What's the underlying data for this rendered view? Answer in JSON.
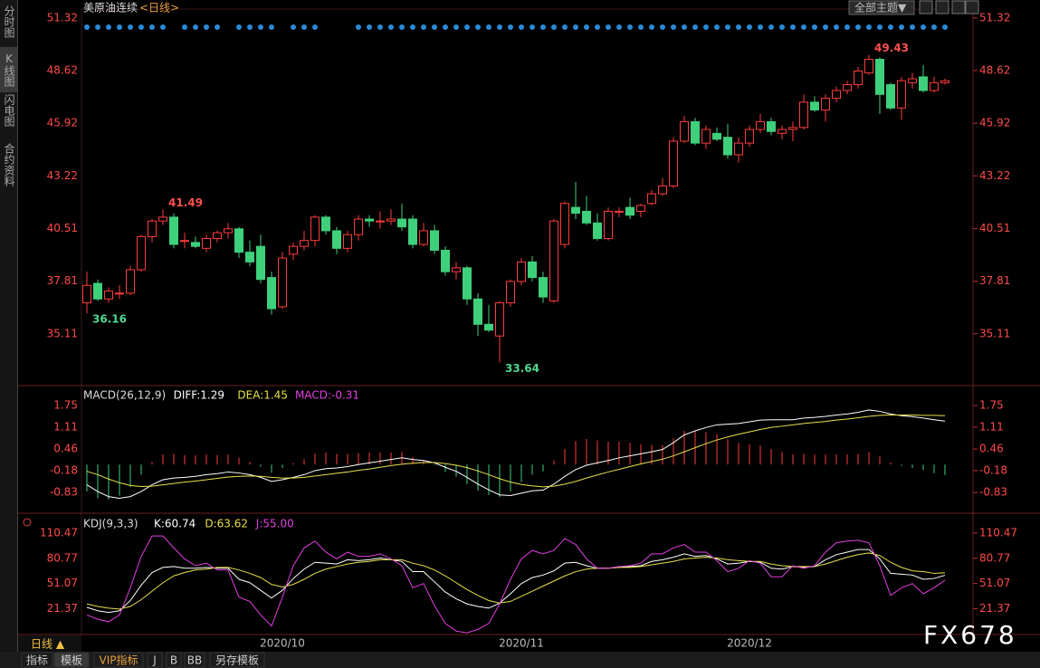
{
  "header": {
    "title": "美原油连续",
    "period": "<日线>",
    "theme_button": "全部主题▼"
  },
  "sidebar": [
    "分时图",
    "K线图",
    "闪电图",
    "合约资料"
  ],
  "chart_data": [
    {
      "type": "candlestick",
      "up_color": "#ff3c3c",
      "down_color": "#3ed07a",
      "categories": [
        null,
        null,
        null,
        null,
        null,
        null,
        null,
        null,
        null,
        null,
        null,
        null,
        null,
        null,
        null,
        null,
        null,
        null,
        "2020/10",
        null,
        null,
        null,
        null,
        null,
        null,
        null,
        null,
        null,
        null,
        null,
        null,
        null,
        null,
        null,
        null,
        null,
        null,
        null,
        null,
        null,
        "2020/11",
        null,
        null,
        null,
        null,
        null,
        null,
        null,
        null,
        null,
        null,
        null,
        null,
        null,
        null,
        null,
        null,
        null,
        null,
        null,
        null,
        "2020/12",
        null,
        null,
        null,
        null,
        null,
        null,
        null,
        null,
        null,
        null,
        null,
        null,
        null,
        null,
        null,
        null,
        null,
        null
      ],
      "candles": [
        [
          36.7,
          38.3,
          36.16,
          37.6
        ],
        [
          37.7,
          37.9,
          36.8,
          36.9
        ],
        [
          36.9,
          37.5,
          36.7,
          37.3
        ],
        [
          37.2,
          37.6,
          36.9,
          37.2
        ],
        [
          37.2,
          38.6,
          37.1,
          38.4
        ],
        [
          38.4,
          40.2,
          38.3,
          40.1
        ],
        [
          40.1,
          41.0,
          39.8,
          40.9
        ],
        [
          40.9,
          41.49,
          40.7,
          41.1
        ],
        [
          41.1,
          41.3,
          39.5,
          39.7
        ],
        [
          39.9,
          40.3,
          39.5,
          39.9
        ],
        [
          39.8,
          40.1,
          39.5,
          39.6
        ],
        [
          39.5,
          40.2,
          39.3,
          40.0
        ],
        [
          40.0,
          40.4,
          39.8,
          40.3
        ],
        [
          40.3,
          40.8,
          40.0,
          40.5
        ],
        [
          40.5,
          40.6,
          39.0,
          39.3
        ],
        [
          39.3,
          39.9,
          38.6,
          38.8
        ],
        [
          39.6,
          40.2,
          37.7,
          37.9
        ],
        [
          38.0,
          38.3,
          36.1,
          36.4
        ],
        [
          36.5,
          39.3,
          36.4,
          39.0
        ],
        [
          39.2,
          39.8,
          38.9,
          39.6
        ],
        [
          39.6,
          40.4,
          39.4,
          39.9
        ],
        [
          39.9,
          41.2,
          39.6,
          41.1
        ],
        [
          41.1,
          41.2,
          40.2,
          40.4
        ],
        [
          40.4,
          40.6,
          39.2,
          39.5
        ],
        [
          39.5,
          40.4,
          39.3,
          40.2
        ],
        [
          40.2,
          41.2,
          39.9,
          41.0
        ],
        [
          41.0,
          41.2,
          40.6,
          40.9
        ],
        [
          40.9,
          41.4,
          40.5,
          40.9
        ],
        [
          40.9,
          41.5,
          40.7,
          41.0
        ],
        [
          41.0,
          41.8,
          40.4,
          40.6
        ],
        [
          41.0,
          41.2,
          39.5,
          39.7
        ],
        [
          39.7,
          40.8,
          39.6,
          40.4
        ],
        [
          40.4,
          40.7,
          39.2,
          39.4
        ],
        [
          39.4,
          39.6,
          38.1,
          38.3
        ],
        [
          38.3,
          38.8,
          37.9,
          38.5
        ],
        [
          38.5,
          38.6,
          36.6,
          36.9
        ],
        [
          36.9,
          37.2,
          35.0,
          35.6
        ],
        [
          35.6,
          36.6,
          35.2,
          35.3
        ],
        [
          35.0,
          36.8,
          33.64,
          36.7
        ],
        [
          36.7,
          37.9,
          36.5,
          37.8
        ],
        [
          37.8,
          39.0,
          37.6,
          38.8
        ],
        [
          38.8,
          39.1,
          37.8,
          38.0
        ],
        [
          38.0,
          38.3,
          36.7,
          37.0
        ],
        [
          36.8,
          41.0,
          36.7,
          40.9
        ],
        [
          39.7,
          41.9,
          39.5,
          41.8
        ],
        [
          41.6,
          42.9,
          41.0,
          41.3
        ],
        [
          41.4,
          42.2,
          40.7,
          40.8
        ],
        [
          40.8,
          41.3,
          39.9,
          40.0
        ],
        [
          40.0,
          41.6,
          39.9,
          41.4
        ],
        [
          41.4,
          41.6,
          41.1,
          41.4
        ],
        [
          41.6,
          42.1,
          41.0,
          41.2
        ],
        [
          41.4,
          41.8,
          41.1,
          41.7
        ],
        [
          41.8,
          42.5,
          41.7,
          42.3
        ],
        [
          42.3,
          43.1,
          42.2,
          42.7
        ],
        [
          42.7,
          45.2,
          42.6,
          45.0
        ],
        [
          45.0,
          46.3,
          44.9,
          46.0
        ],
        [
          46.0,
          46.2,
          44.8,
          44.9
        ],
        [
          44.9,
          45.8,
          44.6,
          45.6
        ],
        [
          45.4,
          45.7,
          45.0,
          45.1
        ],
        [
          45.2,
          45.9,
          44.1,
          44.3
        ],
        [
          44.3,
          45.2,
          43.9,
          44.9
        ],
        [
          44.9,
          45.8,
          44.7,
          45.6
        ],
        [
          45.6,
          46.4,
          45.4,
          46.0
        ],
        [
          46.0,
          46.2,
          45.3,
          45.5
        ],
        [
          45.4,
          45.8,
          45.1,
          45.6
        ],
        [
          45.6,
          46.0,
          45.0,
          45.7
        ],
        [
          45.7,
          47.4,
          45.6,
          47.0
        ],
        [
          47.0,
          47.3,
          46.5,
          46.6
        ],
        [
          46.6,
          47.4,
          46.0,
          47.2
        ],
        [
          47.2,
          47.8,
          47.0,
          47.6
        ],
        [
          47.6,
          48.1,
          47.4,
          47.9
        ],
        [
          47.9,
          48.8,
          47.7,
          48.6
        ],
        [
          48.5,
          49.43,
          48.4,
          49.2
        ],
        [
          49.2,
          49.3,
          46.4,
          47.4
        ],
        [
          47.9,
          48.0,
          46.6,
          46.7
        ],
        [
          46.7,
          48.3,
          46.1,
          48.1
        ],
        [
          48.0,
          48.5,
          47.7,
          48.2
        ],
        [
          48.3,
          48.9,
          47.5,
          47.6
        ],
        [
          47.6,
          48.3,
          47.5,
          48.0
        ],
        [
          48.0,
          48.2,
          47.9,
          48.1
        ]
      ],
      "ylim": [
        32.5,
        51.78
      ],
      "yticks": [
        51.32,
        48.62,
        45.92,
        43.22,
        40.51,
        37.81,
        35.11
      ]
    },
    {
      "type": "macd",
      "title": "MACD(26,12,9)",
      "ylim": [
        -1.39,
        2.29
      ],
      "yticks": [
        1.75,
        1.11,
        0.46,
        -0.18,
        -0.83
      ],
      "series": [
        {
          "name": "DIFF:1.29",
          "color": "#ffffff",
          "values": [
            -0.6,
            -0.8,
            -0.95,
            -1.0,
            -0.95,
            -0.8,
            -0.6,
            -0.45,
            -0.4,
            -0.38,
            -0.35,
            -0.3,
            -0.27,
            -0.22,
            -0.25,
            -0.3,
            -0.38,
            -0.5,
            -0.45,
            -0.38,
            -0.3,
            -0.18,
            -0.12,
            -0.1,
            -0.06,
            0.0,
            0.05,
            0.1,
            0.15,
            0.2,
            0.15,
            0.12,
            0.05,
            -0.08,
            -0.2,
            -0.38,
            -0.58,
            -0.75,
            -0.9,
            -0.92,
            -0.85,
            -0.78,
            -0.76,
            -0.58,
            -0.35,
            -0.15,
            -0.02,
            0.05,
            0.12,
            0.2,
            0.26,
            0.32,
            0.38,
            0.45,
            0.65,
            0.88,
            1.0,
            1.1,
            1.18,
            1.2,
            1.22,
            1.27,
            1.32,
            1.33,
            1.33,
            1.33,
            1.38,
            1.4,
            1.43,
            1.47,
            1.5,
            1.55,
            1.62,
            1.58,
            1.5,
            1.45,
            1.42,
            1.38,
            1.33,
            1.29
          ]
        },
        {
          "name": "DEA:1.45",
          "color": "#e8e04a",
          "values": [
            -0.2,
            -0.3,
            -0.43,
            -0.54,
            -0.62,
            -0.65,
            -0.64,
            -0.6,
            -0.56,
            -0.52,
            -0.49,
            -0.45,
            -0.41,
            -0.37,
            -0.35,
            -0.34,
            -0.35,
            -0.38,
            -0.4,
            -0.4,
            -0.38,
            -0.34,
            -0.3,
            -0.26,
            -0.22,
            -0.17,
            -0.13,
            -0.08,
            -0.03,
            0.01,
            0.04,
            0.06,
            0.06,
            0.03,
            -0.02,
            -0.09,
            -0.19,
            -0.3,
            -0.42,
            -0.52,
            -0.59,
            -0.63,
            -0.66,
            -0.64,
            -0.58,
            -0.5,
            -0.4,
            -0.31,
            -0.22,
            -0.14,
            -0.06,
            0.02,
            0.09,
            0.16,
            0.26,
            0.38,
            0.5,
            0.62,
            0.73,
            0.82,
            0.9,
            0.97,
            1.04,
            1.1,
            1.14,
            1.18,
            1.22,
            1.25,
            1.28,
            1.32,
            1.35,
            1.39,
            1.43,
            1.46,
            1.47,
            1.47,
            1.47,
            1.46,
            1.46,
            1.45
          ]
        }
      ],
      "histogram": {
        "name": "MACD:-0.31",
        "color": "#e040e0",
        "up_color": "#ff3c3c",
        "down_color": "#3ed07a",
        "values": [
          -0.8,
          -1.0,
          -1.04,
          -0.92,
          -0.66,
          -0.3,
          0.08,
          0.3,
          0.32,
          0.28,
          0.28,
          0.3,
          0.28,
          0.3,
          0.2,
          0.08,
          -0.06,
          -0.24,
          -0.1,
          0.04,
          0.16,
          0.32,
          0.36,
          0.32,
          0.32,
          0.34,
          0.36,
          0.36,
          0.36,
          0.38,
          0.22,
          0.12,
          -0.02,
          -0.22,
          -0.36,
          -0.58,
          -0.78,
          -0.9,
          -0.96,
          -0.8,
          -0.52,
          -0.3,
          -0.2,
          0.12,
          0.46,
          0.7,
          0.76,
          0.72,
          0.68,
          0.68,
          0.64,
          0.6,
          0.58,
          0.58,
          0.78,
          1.0,
          1.0,
          0.96,
          0.9,
          0.76,
          0.64,
          0.6,
          0.56,
          0.46,
          0.38,
          0.3,
          0.32,
          0.3,
          0.3,
          0.3,
          0.3,
          0.32,
          0.38,
          0.24,
          0.06,
          -0.04,
          -0.1,
          -0.16,
          -0.26,
          -0.31
        ]
      }
    },
    {
      "type": "kdj",
      "title": "KDJ(9,3,3)",
      "ylim": [
        -9,
        130.6
      ],
      "yticks": [
        110.47,
        80.77,
        51.07,
        21.37
      ],
      "series": [
        {
          "name": "K:60.74",
          "color": "#ffffff",
          "values": [
            23,
            19,
            17,
            19,
            31,
            49,
            64,
            70,
            71,
            69,
            69,
            70,
            69,
            69,
            56,
            52,
            43,
            34,
            43,
            57,
            68,
            76,
            75,
            74,
            79,
            78,
            79,
            81,
            79,
            77,
            65,
            65,
            53,
            41,
            33,
            27,
            24,
            22,
            28,
            39,
            51,
            58,
            61,
            66,
            75,
            76,
            72,
            69,
            69,
            70,
            71,
            72,
            77,
            79,
            82,
            86,
            83,
            84,
            80,
            74,
            75,
            77,
            76,
            69,
            68,
            71,
            70,
            71,
            79,
            85,
            88,
            91,
            91,
            80,
            63,
            62,
            61,
            56,
            57,
            60.74
          ]
        },
        {
          "name": "D:63.62",
          "color": "#e8e04a",
          "values": [
            27,
            24,
            22,
            21,
            24,
            32,
            42,
            52,
            60,
            64,
            67,
            68,
            70,
            70,
            67,
            63,
            58,
            50,
            47,
            50,
            56,
            63,
            68,
            71,
            74,
            76,
            77,
            79,
            79,
            79,
            75,
            72,
            67,
            60,
            52,
            44,
            37,
            31,
            28,
            30,
            36,
            42,
            48,
            54,
            60,
            65,
            68,
            69,
            69,
            70,
            70,
            71,
            73,
            75,
            77,
            80,
            81,
            82,
            81,
            79,
            78,
            77,
            77,
            74,
            72,
            71,
            71,
            71,
            74,
            78,
            82,
            85,
            87,
            84,
            76,
            70,
            66,
            65,
            63,
            63.62
          ]
        },
        {
          "name": "J:55.00",
          "color": "#e040e0",
          "values": [
            14,
            9,
            6,
            14,
            46,
            83,
            107,
            107,
            93,
            80,
            72,
            75,
            67,
            67,
            35,
            30,
            14,
            1,
            35,
            72,
            93,
            101,
            88,
            80,
            88,
            83,
            83,
            86,
            80,
            72,
            46,
            51,
            25,
            4,
            -5,
            -7,
            -3,
            4,
            27,
            56,
            80,
            90,
            86,
            90,
            104,
            97,
            80,
            69,
            69,
            71,
            72,
            75,
            86,
            86,
            93,
            97,
            88,
            88,
            78,
            65,
            69,
            78,
            75,
            59,
            59,
            72,
            69,
            72,
            88,
            99,
            101,
            102,
            99,
            72,
            37,
            46,
            51,
            39,
            46,
            55
          ]
        }
      ]
    }
  ],
  "footer": {
    "period": "日线 ▲",
    "tabs": [
      "指标",
      "模板",
      "VIP指标",
      "J",
      "B",
      "BB",
      "另存模板"
    ]
  },
  "watermark": "FX678"
}
